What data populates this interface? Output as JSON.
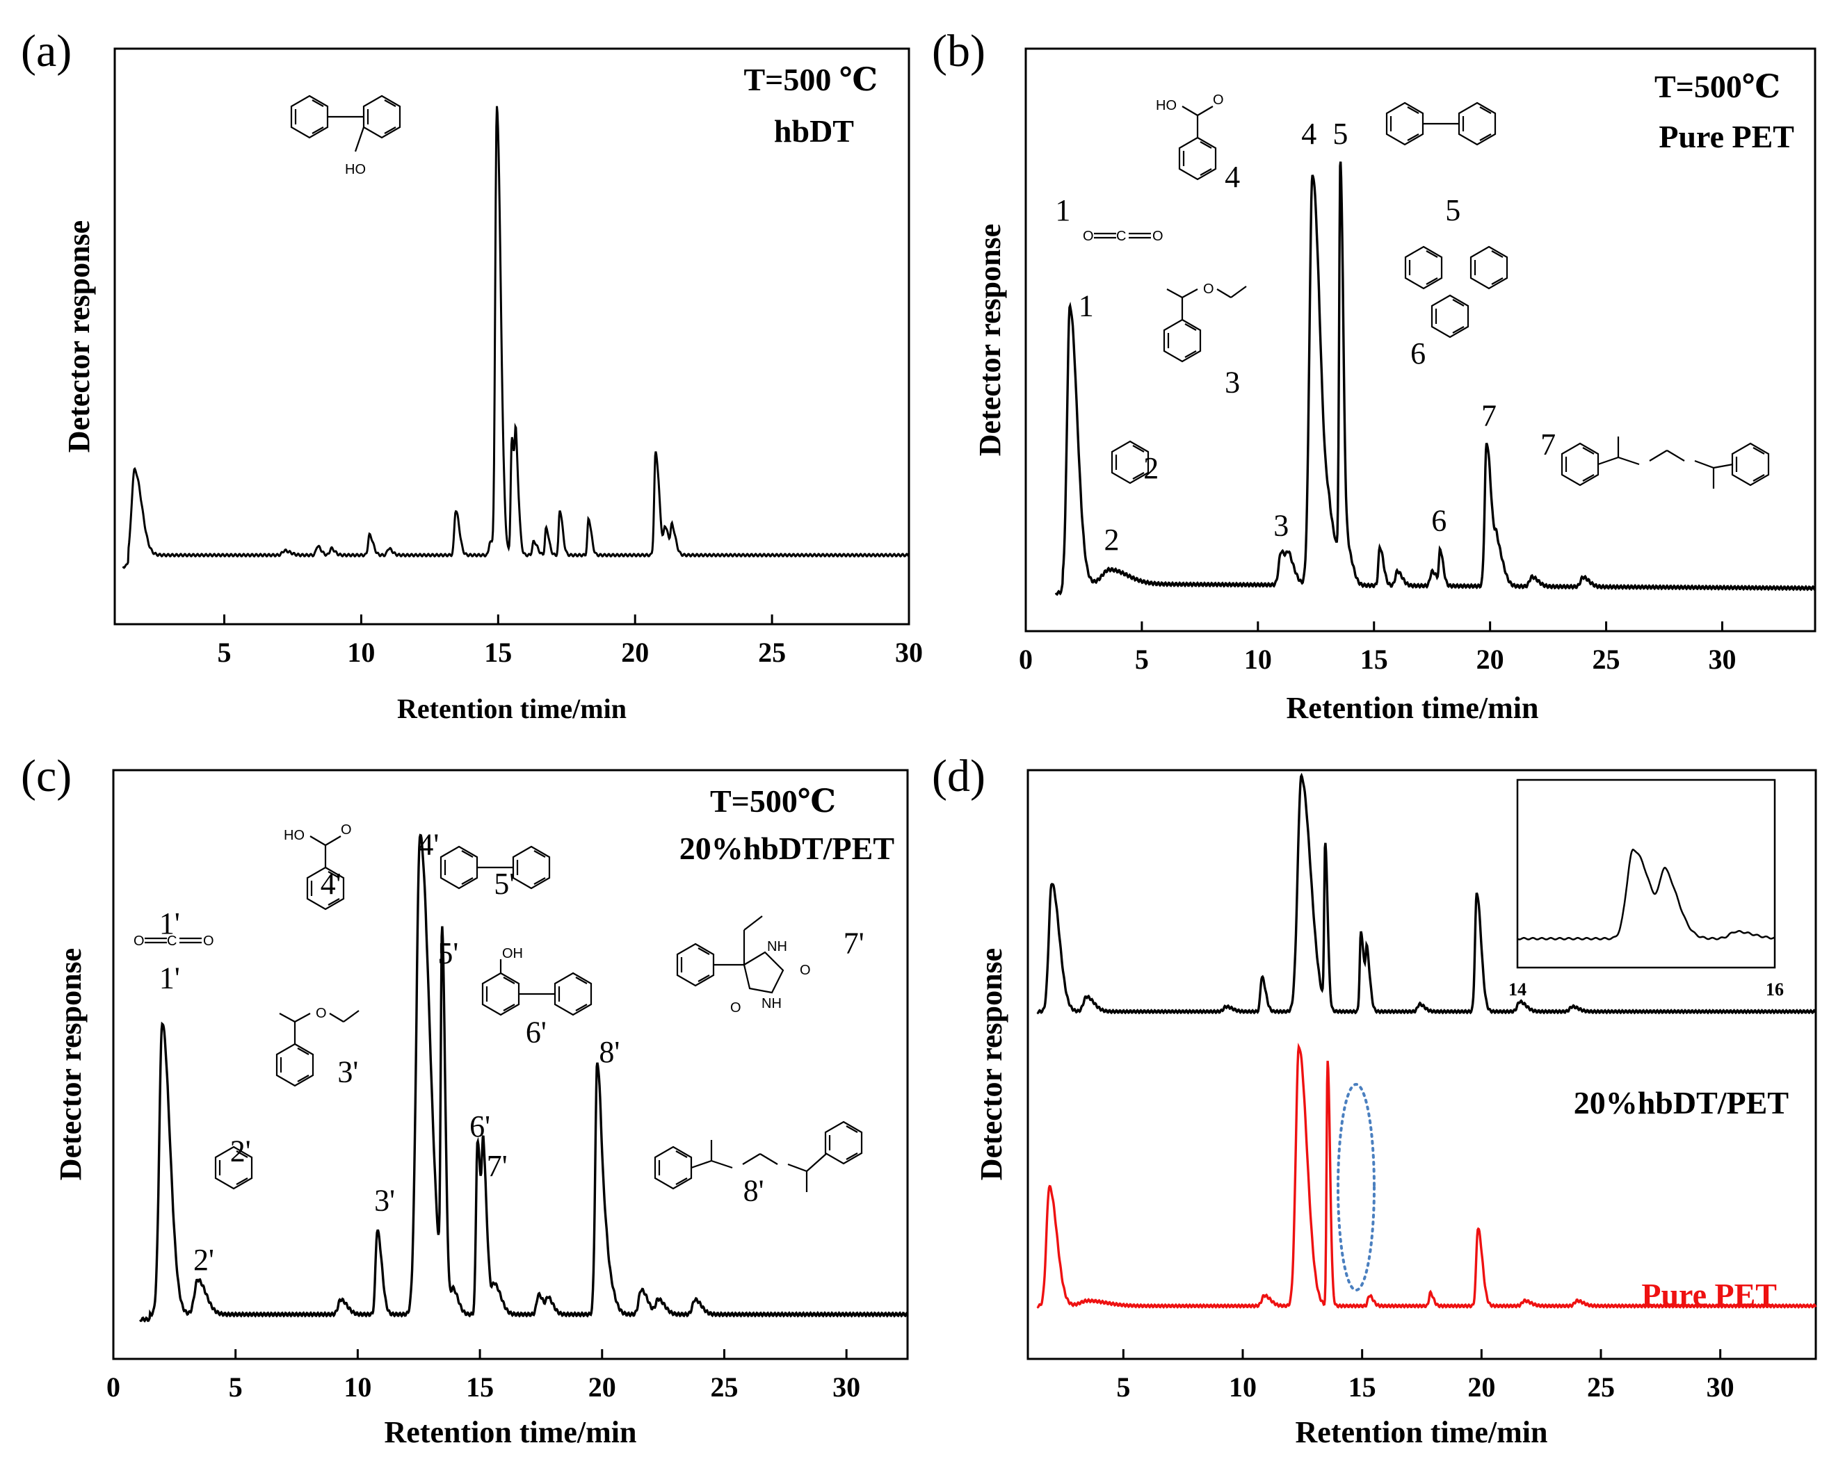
{
  "figure": {
    "colors": {
      "axis": "#000000",
      "trace": "#000000",
      "pure_pet": "#ee1111",
      "highlight": "#4a7fbf"
    }
  },
  "chart_data": [
    {
      "id": "a",
      "type": "line",
      "panel_label": "(a)",
      "title": "",
      "condition": [
        "T=500 ℃",
        "hbDT"
      ],
      "xlabel": "Retention time/min",
      "ylabel": "Detector response",
      "xlim": [
        1,
        30
      ],
      "ylim": [
        0,
        1
      ],
      "xticks": [
        5,
        10,
        15,
        20,
        25,
        30
      ],
      "tick_labels": [
        "5",
        "10",
        "15",
        "20",
        "25",
        "30"
      ],
      "baseline": 0.12,
      "peaks": [
        {
          "x": 1.72,
          "h": 0.19,
          "w": 0.1
        },
        {
          "x": 7.2,
          "h": 0.01,
          "w": 0.08
        },
        {
          "x": 8.4,
          "h": 0.02,
          "w": 0.05
        },
        {
          "x": 8.9,
          "h": 0.015,
          "w": 0.05
        },
        {
          "x": 10.3,
          "h": 0.045,
          "w": 0.05
        },
        {
          "x": 11.0,
          "h": 0.015,
          "w": 0.05
        },
        {
          "x": 13.45,
          "h": 0.1,
          "w": 0.05
        },
        {
          "x": 14.7,
          "h": 0.03,
          "w": 0.04
        },
        {
          "x": 14.95,
          "h": 1.0,
          "w": 0.055
        },
        {
          "x": 15.5,
          "h": 0.26,
          "w": 0.04
        },
        {
          "x": 15.65,
          "h": 0.19,
          "w": 0.04
        },
        {
          "x": 16.3,
          "h": 0.03,
          "w": 0.05
        },
        {
          "x": 16.75,
          "h": 0.06,
          "w": 0.04
        },
        {
          "x": 17.25,
          "h": 0.1,
          "w": 0.04
        },
        {
          "x": 18.3,
          "h": 0.08,
          "w": 0.04
        },
        {
          "x": 20.75,
          "h": 0.23,
          "w": 0.05
        },
        {
          "x": 21.1,
          "h": 0.06,
          "w": 0.05
        },
        {
          "x": 21.35,
          "h": 0.06,
          "w": 0.05
        }
      ],
      "structures": [
        {
          "molecule": "2-hydroxybiphenyl",
          "text": "HO"
        }
      ],
      "peak_labels": []
    },
    {
      "id": "b",
      "type": "line",
      "panel_label": "(b)",
      "title": "",
      "condition": [
        "T=500℃",
        "Pure PET"
      ],
      "xlabel": "Retention time/min",
      "ylabel": "Detector response",
      "xlim": [
        0,
        34
      ],
      "ylim": [
        0,
        1
      ],
      "xticks": [
        0,
        5,
        10,
        15,
        20,
        25,
        30
      ],
      "tick_labels": [
        "0",
        "5",
        "10",
        "15",
        "20",
        "25",
        "30"
      ],
      "baseline": 0.1,
      "peaks": [
        {
          "x": 1.9,
          "h": 0.58,
          "w": 0.12
        },
        {
          "x": 3.6,
          "h": 0.03,
          "w": 0.3
        },
        {
          "x": 11.0,
          "h": 0.07,
          "w": 0.1
        },
        {
          "x": 11.35,
          "h": 0.04,
          "w": 0.1
        },
        {
          "x": 12.35,
          "h": 0.86,
          "w": 0.13
        },
        {
          "x": 13.1,
          "h": 0.1,
          "w": 0.15
        },
        {
          "x": 13.55,
          "h": 0.84,
          "w": 0.05
        },
        {
          "x": 13.9,
          "h": 0.06,
          "w": 0.08
        },
        {
          "x": 15.25,
          "h": 0.08,
          "w": 0.06
        },
        {
          "x": 16.0,
          "h": 0.03,
          "w": 0.08
        },
        {
          "x": 17.5,
          "h": 0.03,
          "w": 0.08
        },
        {
          "x": 17.85,
          "h": 0.07,
          "w": 0.05
        },
        {
          "x": 19.85,
          "h": 0.3,
          "w": 0.08
        },
        {
          "x": 20.3,
          "h": 0.08,
          "w": 0.1
        },
        {
          "x": 21.8,
          "h": 0.02,
          "w": 0.1
        },
        {
          "x": 24.0,
          "h": 0.02,
          "w": 0.1
        }
      ],
      "peak_labels": [
        {
          "text": "1",
          "x": 2.6,
          "y": 0.66
        },
        {
          "text": "1",
          "x": 1.6,
          "y": 0.86
        },
        {
          "text": "2",
          "x": 3.7,
          "y": 0.17
        },
        {
          "text": "3",
          "x": 11.0,
          "y": 0.2
        },
        {
          "text": "4",
          "x": 12.2,
          "y": 1.02
        },
        {
          "text": "5",
          "x": 13.55,
          "y": 1.02
        },
        {
          "text": "6",
          "x": 17.8,
          "y": 0.21
        },
        {
          "text": "7",
          "x": 19.95,
          "y": 0.43
        },
        {
          "text": "2",
          "x": 5.4,
          "y": 0.32
        },
        {
          "text": "3",
          "x": 8.9,
          "y": 0.5
        },
        {
          "text": "4",
          "x": 8.9,
          "y": 0.93
        },
        {
          "text": "5",
          "x": 18.4,
          "y": 0.86
        },
        {
          "text": "6",
          "x": 16.9,
          "y": 0.56
        },
        {
          "text": "7",
          "x": 22.5,
          "y": 0.37
        }
      ]
    },
    {
      "id": "c",
      "type": "line",
      "panel_label": "(c)",
      "title": "",
      "condition": [
        "T=500℃",
        "20%hbDT/PET"
      ],
      "xlabel": "Retention time/min",
      "ylabel": "Detector response",
      "xlim": [
        0,
        32.5
      ],
      "ylim": [
        0,
        1
      ],
      "xticks": [
        0,
        5,
        10,
        15,
        20,
        25,
        30
      ],
      "tick_labels": [
        "0",
        "5",
        "10",
        "15",
        "20",
        "25",
        "30"
      ],
      "baseline": 0.09,
      "peaks": [
        {
          "x": 2.0,
          "h": 0.59,
          "w": 0.12
        },
        {
          "x": 3.45,
          "h": 0.07,
          "w": 0.13
        },
        {
          "x": 9.3,
          "h": 0.03,
          "w": 0.1
        },
        {
          "x": 10.8,
          "h": 0.17,
          "w": 0.07
        },
        {
          "x": 12.55,
          "h": 0.97,
          "w": 0.15
        },
        {
          "x": 13.45,
          "h": 0.72,
          "w": 0.05
        },
        {
          "x": 13.9,
          "h": 0.05,
          "w": 0.08
        },
        {
          "x": 14.9,
          "h": 0.35,
          "w": 0.06
        },
        {
          "x": 15.15,
          "h": 0.26,
          "w": 0.06
        },
        {
          "x": 15.6,
          "h": 0.06,
          "w": 0.1
        },
        {
          "x": 17.4,
          "h": 0.04,
          "w": 0.08
        },
        {
          "x": 17.8,
          "h": 0.03,
          "w": 0.08
        },
        {
          "x": 19.8,
          "h": 0.51,
          "w": 0.08
        },
        {
          "x": 20.2,
          "h": 0.08,
          "w": 0.1
        },
        {
          "x": 21.6,
          "h": 0.05,
          "w": 0.1
        },
        {
          "x": 22.3,
          "h": 0.03,
          "w": 0.1
        },
        {
          "x": 23.8,
          "h": 0.03,
          "w": 0.1
        }
      ],
      "peak_labels": [
        {
          "text": "1'",
          "x": 2.3,
          "y": 0.75
        },
        {
          "text": "1'",
          "x": 2.3,
          "y": 0.86
        },
        {
          "text": "2'",
          "x": 3.7,
          "y": 0.18
        },
        {
          "text": "3'",
          "x": 11.1,
          "y": 0.3
        },
        {
          "text": "4'",
          "x": 12.9,
          "y": 1.02
        },
        {
          "text": "5'",
          "x": 13.7,
          "y": 0.8
        },
        {
          "text": "6'",
          "x": 15.0,
          "y": 0.45
        },
        {
          "text": "7'",
          "x": 15.7,
          "y": 0.37
        },
        {
          "text": "8'",
          "x": 20.3,
          "y": 0.6
        },
        {
          "text": "2'",
          "x": 5.2,
          "y": 0.4
        },
        {
          "text": "3'",
          "x": 9.6,
          "y": 0.56
        },
        {
          "text": "4'",
          "x": 8.9,
          "y": 0.94
        },
        {
          "text": "5'",
          "x": 16.0,
          "y": 0.94
        },
        {
          "text": "6'",
          "x": 17.3,
          "y": 0.64
        },
        {
          "text": "7'",
          "x": 30.3,
          "y": 0.82
        },
        {
          "text": "8'",
          "x": 26.2,
          "y": 0.32
        }
      ]
    },
    {
      "id": "d",
      "type": "line",
      "panel_label": "(d)",
      "title": "",
      "xlabel": "Retention time/min",
      "ylabel": "Detector response",
      "xlim": [
        1,
        34
      ],
      "ylim": [
        0,
        1
      ],
      "xticks": [
        5,
        10,
        15,
        20,
        25,
        30
      ],
      "tick_labels": [
        "5",
        "10",
        "15",
        "20",
        "25",
        "30"
      ],
      "series": [
        {
          "name": "20%hbDT/PET",
          "color": "#000000",
          "offset": 0.59,
          "scale": 0.42,
          "peaks": [
            {
              "x": 2.0,
              "h": 0.52,
              "w": 0.12
            },
            {
              "x": 3.45,
              "h": 0.06,
              "w": 0.12
            },
            {
              "x": 9.3,
              "h": 0.02,
              "w": 0.1
            },
            {
              "x": 10.8,
              "h": 0.14,
              "w": 0.06
            },
            {
              "x": 12.45,
              "h": 0.95,
              "w": 0.15
            },
            {
              "x": 13.45,
              "h": 0.65,
              "w": 0.04
            },
            {
              "x": 14.95,
              "h": 0.32,
              "w": 0.05
            },
            {
              "x": 15.2,
              "h": 0.22,
              "w": 0.05
            },
            {
              "x": 17.4,
              "h": 0.03,
              "w": 0.08
            },
            {
              "x": 19.8,
              "h": 0.48,
              "w": 0.07
            },
            {
              "x": 21.6,
              "h": 0.04,
              "w": 0.1
            },
            {
              "x": 23.8,
              "h": 0.02,
              "w": 0.1
            }
          ]
        },
        {
          "name": "Pure PET",
          "color": "#ee1111",
          "offset": 0.09,
          "scale": 0.44,
          "peaks": [
            {
              "x": 1.9,
              "h": 0.46,
              "w": 0.12
            },
            {
              "x": 3.5,
              "h": 0.02,
              "w": 0.3
            },
            {
              "x": 10.9,
              "h": 0.04,
              "w": 0.1
            },
            {
              "x": 12.35,
              "h": 1.0,
              "w": 0.13
            },
            {
              "x": 13.55,
              "h": 0.95,
              "w": 0.04
            },
            {
              "x": 15.3,
              "h": 0.04,
              "w": 0.06
            },
            {
              "x": 17.85,
              "h": 0.05,
              "w": 0.05
            },
            {
              "x": 19.85,
              "h": 0.3,
              "w": 0.07
            },
            {
              "x": 21.8,
              "h": 0.02,
              "w": 0.1
            },
            {
              "x": 24.0,
              "h": 0.02,
              "w": 0.1
            }
          ]
        }
      ],
      "highlight": {
        "shape": "dotted-ellipse",
        "x_center": 15.0,
        "description": "15 min region"
      },
      "inset": {
        "xlim": [
          14,
          16
        ],
        "xticks": [
          14,
          16
        ],
        "tick_labels": [
          "14",
          "16"
        ],
        "peaks": [
          {
            "x": 14.9,
            "h": 0.75,
            "w": 0.05
          },
          {
            "x": 15.15,
            "h": 0.48,
            "w": 0.04
          },
          {
            "x": 15.7,
            "h": 0.06,
            "w": 0.05
          }
        ]
      }
    }
  ]
}
